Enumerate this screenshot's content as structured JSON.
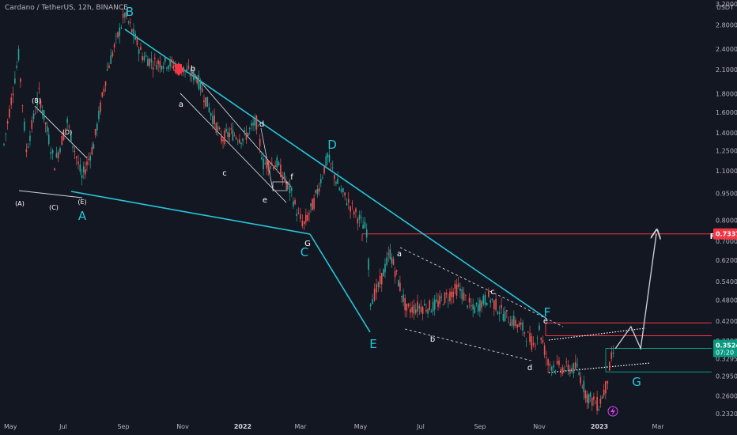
{
  "header": {
    "title": "Cardano / TetherUS, 12h, BINANCE",
    "currency": "USDT"
  },
  "chart_data": {
    "type": "line",
    "title": "Cardano / TetherUS, 12h, BINANCE",
    "scale": "log",
    "ylabel": "USDT",
    "y_ticks": [
      3.2,
      2.8,
      2.4,
      2.1,
      1.8,
      1.6,
      1.4,
      1.25,
      1.1,
      0.95,
      0.8,
      0.7,
      0.62,
      0.54,
      0.48,
      0.42,
      0.37,
      0.3295,
      0.295,
      0.26,
      0.232
    ],
    "y_tick_labels": [
      "3.2000",
      "2.8000",
      "2.4000",
      "2.1000",
      "1.8000",
      "1.6000",
      "1.4000",
      "1.2500",
      "1.1000",
      "0.9500",
      "0.8000",
      "0.7000",
      "0.6200",
      "0.5400",
      "0.4800",
      "0.4200",
      "0.3700",
      "0.3295",
      "0.2950",
      "0.2600",
      "0.2320"
    ],
    "x_ticks": [
      {
        "label": "May",
        "bold": false
      },
      {
        "label": "Jul",
        "bold": false
      },
      {
        "label": "Sep",
        "bold": false
      },
      {
        "label": "Nov",
        "bold": false
      },
      {
        "label": "2022",
        "bold": true
      },
      {
        "label": "Mar",
        "bold": false
      },
      {
        "label": "May",
        "bold": false
      },
      {
        "label": "Jul",
        "bold": false
      },
      {
        "label": "Sep",
        "bold": false
      },
      {
        "label": "Nov",
        "bold": false
      },
      {
        "label": "2023",
        "bold": true
      },
      {
        "label": "Mar",
        "bold": false
      }
    ],
    "price_path": [
      [
        "2021-05-01",
        1.3
      ],
      [
        "2021-05-16",
        2.3
      ],
      [
        "2021-05-24",
        1.25
      ],
      [
        "2021-06-06",
        1.8
      ],
      [
        "2021-06-16",
        1.35
      ],
      [
        "2021-06-22",
        1.15
      ],
      [
        "2021-07-05",
        1.5
      ],
      [
        "2021-07-20",
        1.05
      ],
      [
        "2021-08-01",
        1.3
      ],
      [
        "2021-08-15",
        2.1
      ],
      [
        "2021-09-02",
        3.0
      ],
      [
        "2021-09-20",
        2.3
      ],
      [
        "2021-10-01",
        2.2
      ],
      [
        "2021-10-15",
        2.2
      ],
      [
        "2021-11-01",
        2.1
      ],
      [
        "2021-11-15",
        2.0
      ],
      [
        "2021-12-01",
        1.55
      ],
      [
        "2021-12-10",
        1.35
      ],
      [
        "2021-12-20",
        1.4
      ],
      [
        "2022-01-01",
        1.35
      ],
      [
        "2022-01-15",
        1.5
      ],
      [
        "2022-01-22",
        1.15
      ],
      [
        "2022-02-05",
        1.15
      ],
      [
        "2022-02-20",
        0.95
      ],
      [
        "2022-02-27",
        0.82
      ],
      [
        "2022-03-05",
        0.78
      ],
      [
        "2022-03-15",
        0.9
      ],
      [
        "2022-03-29",
        1.2
      ],
      [
        "2022-04-10",
        0.98
      ],
      [
        "2022-04-25",
        0.85
      ],
      [
        "2022-05-08",
        0.75
      ],
      [
        "2022-05-12",
        0.48
      ],
      [
        "2022-05-20",
        0.52
      ],
      [
        "2022-06-01",
        0.65
      ],
      [
        "2022-06-18",
        0.45
      ],
      [
        "2022-07-01",
        0.46
      ],
      [
        "2022-07-15",
        0.46
      ],
      [
        "2022-08-10",
        0.52
      ],
      [
        "2022-08-25",
        0.45
      ],
      [
        "2022-09-10",
        0.49
      ],
      [
        "2022-09-25",
        0.44
      ],
      [
        "2022-10-15",
        0.4
      ],
      [
        "2022-10-26",
        0.36
      ],
      [
        "2022-11-01",
        0.4
      ],
      [
        "2022-11-10",
        0.32
      ],
      [
        "2022-11-25",
        0.31
      ],
      [
        "2022-12-10",
        0.31
      ],
      [
        "2022-12-20",
        0.26
      ],
      [
        "2023-01-01",
        0.245
      ],
      [
        "2023-01-08",
        0.275
      ],
      [
        "2023-01-14",
        0.33
      ],
      [
        "2023-01-18",
        0.352
      ]
    ],
    "projection": [
      [
        "2023-01-18",
        0.352
      ],
      [
        "2023-02-03",
        0.405
      ],
      [
        "2023-02-13",
        0.352
      ],
      [
        "2023-03-01",
        0.7337
      ]
    ],
    "wave_labels_major": [
      "A",
      "B",
      "C",
      "D",
      "E",
      "F",
      "G"
    ],
    "wave_labels_minor": [
      "a",
      "b",
      "c",
      "d",
      "e",
      "f"
    ],
    "wave_labels_sub": [
      "(A)",
      "(B)",
      "(C)",
      "(D)",
      "(E)"
    ],
    "horizontal_levels": [
      {
        "value": 0.7337,
        "color": "#f23645"
      },
      {
        "value": 0.415,
        "color": "#f23645"
      },
      {
        "value": 0.382,
        "color": "#f23645"
      },
      {
        "value": 0.3524,
        "color": "#089981"
      },
      {
        "value": 0.303,
        "color": "#089981"
      }
    ],
    "current_price": "0.3524",
    "countdown": "07:20",
    "target_price": "0.7337",
    "target_tag": "F",
    "grid": false,
    "legend": "none"
  }
}
